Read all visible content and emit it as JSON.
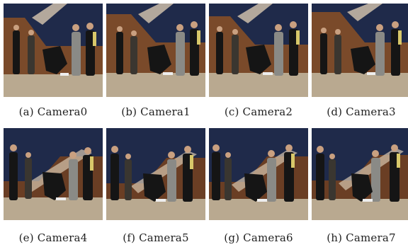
{
  "panels": [
    {
      "label": "(a) Camera0"
    },
    {
      "label": "(b) Camera1"
    },
    {
      "label": "(c) Camera2"
    },
    {
      "label": "(d) Camera3"
    },
    {
      "label": "(e) Camera4"
    },
    {
      "label": "(f) Camera5"
    },
    {
      "label": "(g) Camera6"
    },
    {
      "label": "(h) Camera7"
    }
  ],
  "colors": {
    "wall_blue": "#1f2a4a",
    "wall_wood": "#7a4a2a",
    "floor": "#b9a990",
    "skin": "#c9a080",
    "dark_clothes": "#151515",
    "grey_clothes": "#8a8a86",
    "yellow_sleeve": "#d8c86a"
  }
}
